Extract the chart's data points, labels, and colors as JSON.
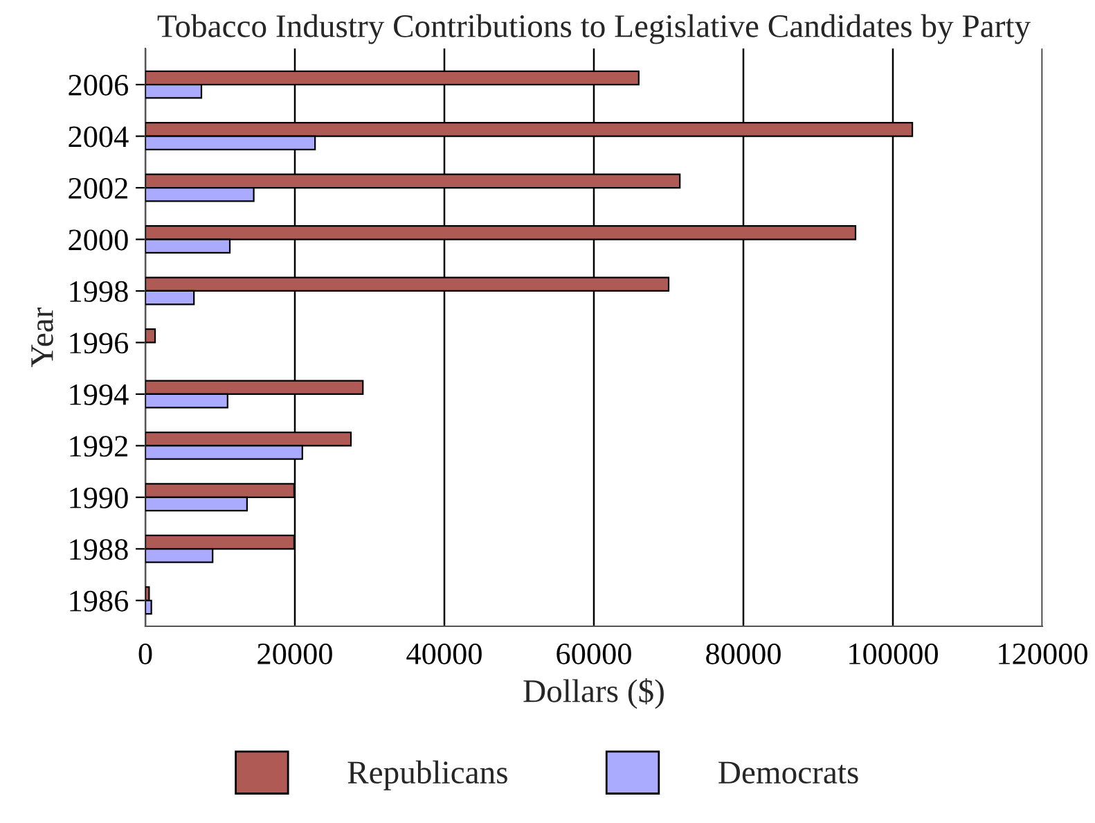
{
  "chart_data": {
    "type": "bar",
    "orientation": "horizontal",
    "title": "Tobacco Industry Contributions to Legislative Candidates by Party",
    "xlabel": "Dollars ($)",
    "ylabel": "Year",
    "categories": [
      "2006",
      "2004",
      "2002",
      "2000",
      "1998",
      "1996",
      "1994",
      "1992",
      "1990",
      "1988",
      "1986"
    ],
    "series": [
      {
        "name": "Republicans",
        "color": "#b05a55",
        "values": [
          66000,
          102600,
          71500,
          95000,
          70000,
          1300,
          29100,
          27500,
          19900,
          19900,
          500
        ]
      },
      {
        "name": "Democrats",
        "color": "#aaaaff",
        "values": [
          7500,
          22700,
          14500,
          11300,
          6500,
          null,
          11000,
          21000,
          13600,
          9000,
          800
        ]
      }
    ],
    "xlim": [
      0,
      120000
    ],
    "xticks": [
      0,
      20000,
      40000,
      60000,
      80000,
      100000,
      120000
    ],
    "grid": "x",
    "legend": "bottom"
  }
}
